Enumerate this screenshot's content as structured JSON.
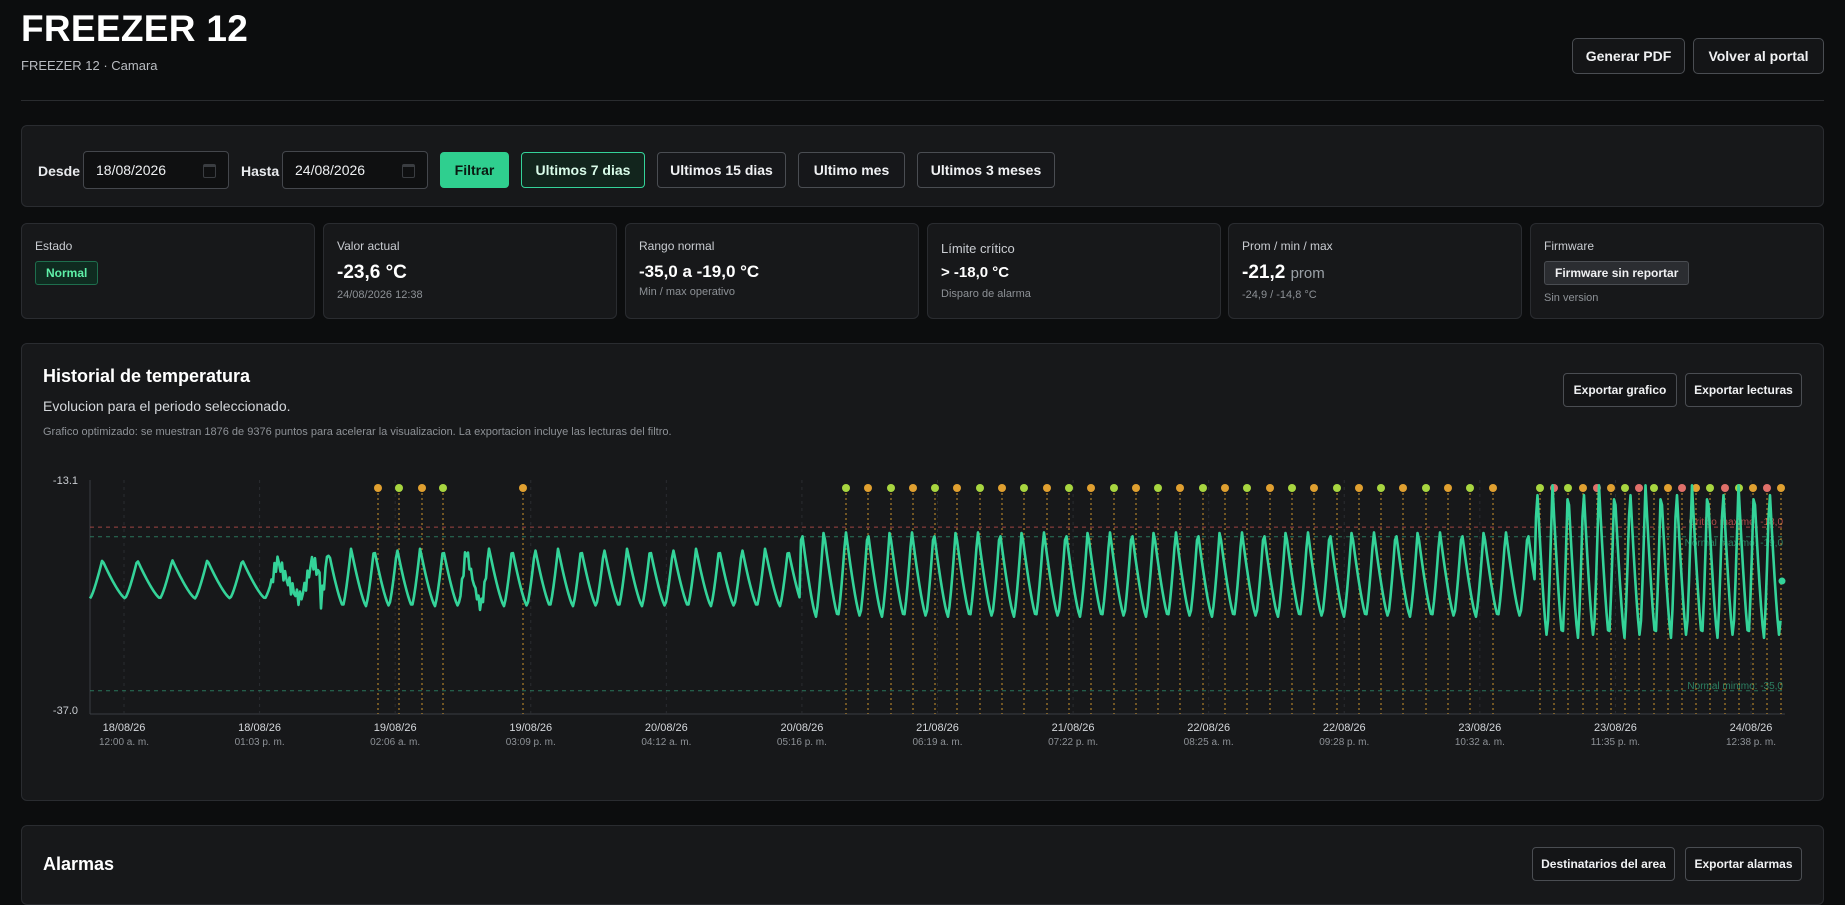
{
  "header": {
    "title": "FREEZER 12",
    "subtitle": "FREEZER 12 · Camara",
    "pdf_button": "Generar PDF",
    "back_button": "Volver al portal"
  },
  "filter": {
    "from_label": "Desde",
    "from_value": "18/08/2026",
    "to_label": "Hasta",
    "to_value": "24/08/2026",
    "filter_button": "Filtrar",
    "ranges": [
      {
        "label": "Ultimos 7 dias",
        "active": true
      },
      {
        "label": "Ultimos 15 dias",
        "active": false
      },
      {
        "label": "Ultimo mes",
        "active": false
      },
      {
        "label": "Ultimos 3 meses",
        "active": false
      }
    ]
  },
  "cards": {
    "estado": {
      "label": "Estado",
      "badge": "Normal"
    },
    "valor_actual": {
      "label": "Valor actual",
      "value": "-23,6 °C",
      "note": "24/08/2026 12:38"
    },
    "rango_normal": {
      "label": "Rango normal",
      "value": "-35,0 a -19,0 °C",
      "note": "Min / max operativo"
    },
    "limite_critico": {
      "label": "Límite crítico",
      "value": "> -18,0 °C",
      "note": "Disparo de alarma"
    },
    "prom": {
      "label": "Prom / min / max",
      "value": "-21,2",
      "value_suffix": "prom",
      "note": "-24,9 / -14,8 °C"
    },
    "firmware": {
      "label": "Firmware",
      "badge": "Firmware sin reportar",
      "note": "Sin version"
    }
  },
  "history": {
    "title": "Historial de temperatura",
    "subtitle": "Evolucion para el periodo seleccionado.",
    "note": "Grafico optimizado: se muestran 1876 de 9376 puntos para acelerar la visualizacion. La exportacion incluye las lecturas del filtro.",
    "export_chart_button": "Exportar grafico",
    "export_readings_button": "Exportar lecturas"
  },
  "alarms": {
    "title": "Alarmas",
    "recipients_button": "Destinatarios del area",
    "export_button": "Exportar alarmas"
  },
  "colors": {
    "accent": "#2fcf8f",
    "series": "#34d399",
    "alarm_marker": "#e0a030",
    "critical_line": "#c0504d",
    "normal_line": "#2e8b6a"
  },
  "chart_data": {
    "type": "line",
    "ylim": [
      -37.0,
      -13.1
    ],
    "ytick_labels": [
      "-13.1",
      "-37.0"
    ],
    "x_ticks": [
      {
        "date": "18/08/26",
        "time": "12:00 a. m."
      },
      {
        "date": "18/08/26",
        "time": "01:03 p. m."
      },
      {
        "date": "19/08/26",
        "time": "02:06 a. m."
      },
      {
        "date": "19/08/26",
        "time": "03:09 p. m."
      },
      {
        "date": "20/08/26",
        "time": "04:12 a. m."
      },
      {
        "date": "20/08/26",
        "time": "05:16 p. m."
      },
      {
        "date": "21/08/26",
        "time": "06:19 a. m."
      },
      {
        "date": "21/08/26",
        "time": "07:22 p. m."
      },
      {
        "date": "22/08/26",
        "time": "08:25 a. m."
      },
      {
        "date": "22/08/26",
        "time": "09:28 p. m."
      },
      {
        "date": "23/08/26",
        "time": "10:32 a. m."
      },
      {
        "date": "23/08/26",
        "time": "11:35 p. m."
      },
      {
        "date": "24/08/26",
        "time": "12:38 p. m."
      }
    ],
    "reference_lines": [
      {
        "label": "Critico maximo: -18,0",
        "value": -18.0
      },
      {
        "label": "Normal maximo: -19,0",
        "value": -19.0
      },
      {
        "label": "Normal minimo: -35,0",
        "value": -35.0
      }
    ]
  }
}
